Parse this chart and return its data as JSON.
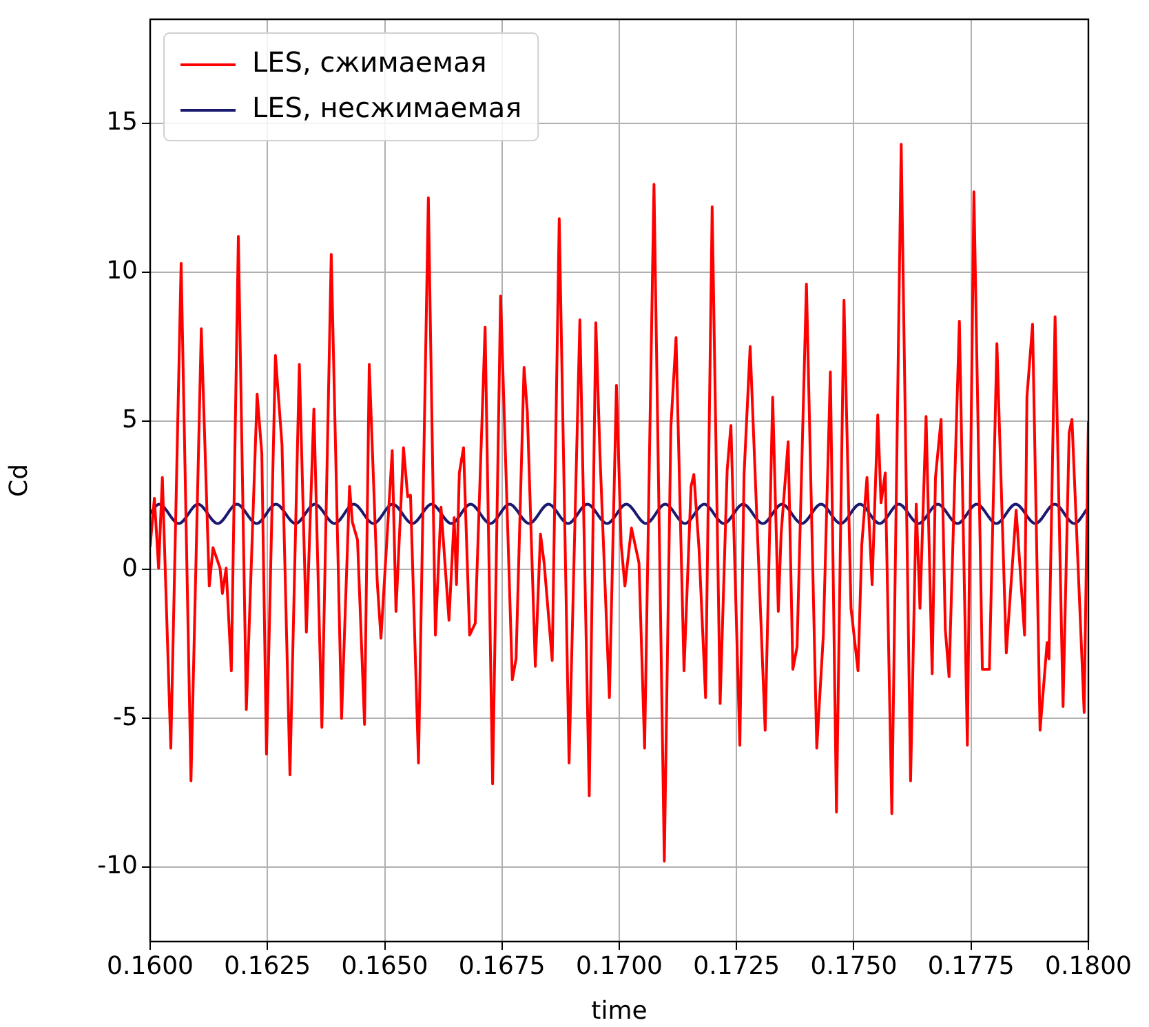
{
  "chart_data": {
    "type": "line",
    "xlabel": "time",
    "ylabel": "Cd",
    "xlim": [
      0.16,
      0.18
    ],
    "ylim": [
      -12.5,
      18.5
    ],
    "xticks": [
      {
        "value": 0.16,
        "label": "0.1600"
      },
      {
        "value": 0.1625,
        "label": "0.1625"
      },
      {
        "value": 0.165,
        "label": "0.1650"
      },
      {
        "value": 0.1675,
        "label": "0.1675"
      },
      {
        "value": 0.17,
        "label": "0.1700"
      },
      {
        "value": 0.1725,
        "label": "0.1725"
      },
      {
        "value": 0.175,
        "label": "0.1750"
      },
      {
        "value": 0.1775,
        "label": "0.1775"
      },
      {
        "value": 0.18,
        "label": "0.1800"
      }
    ],
    "yticks": [
      -10,
      -5,
      0,
      5,
      10,
      15
    ],
    "grid": true,
    "legend": "top left",
    "marker": "none",
    "line_style": "solid",
    "series": [
      {
        "name": "LES, сжимаемая",
        "color": "#ff0000",
        "x": [
          0.16,
          0.16009,
          0.16018,
          0.16026,
          0.16044,
          0.16066,
          0.16087,
          0.16109,
          0.16126,
          0.16134,
          0.16149,
          0.16154,
          0.16162,
          0.16173,
          0.16188,
          0.16205,
          0.16228,
          0.16238,
          0.16248,
          0.16267,
          0.16281,
          0.16298,
          0.16318,
          0.16333,
          0.16349,
          0.16366,
          0.16386,
          0.16408,
          0.16425,
          0.16431,
          0.16442,
          0.16457,
          0.16467,
          0.16484,
          0.16492,
          0.16516,
          0.16524,
          0.1654,
          0.16549,
          0.16555,
          0.16572,
          0.16593,
          0.16608,
          0.1662,
          0.16637,
          0.16648,
          0.16653,
          0.16659,
          0.16668,
          0.16681,
          0.16693,
          0.16714,
          0.1673,
          0.16747,
          0.16772,
          0.1678,
          0.16797,
          0.16804,
          0.16821,
          0.16832,
          0.1684,
          0.16857,
          0.16872,
          0.16893,
          0.16916,
          0.16936,
          0.1695,
          0.16959,
          0.16979,
          0.16994,
          0.17004,
          0.17012,
          0.17026,
          0.17042,
          0.17054,
          0.17074,
          0.17096,
          0.1711,
          0.17121,
          0.17138,
          0.17153,
          0.17159,
          0.1717,
          0.17184,
          0.17198,
          0.17215,
          0.1723,
          0.17238,
          0.17257,
          0.17266,
          0.17279,
          0.17311,
          0.17327,
          0.17339,
          0.17345,
          0.1736,
          0.1737,
          0.17379,
          0.17399,
          0.17421,
          0.17435,
          0.1745,
          0.17463,
          0.17479,
          0.17494,
          0.17509,
          0.17517,
          0.17528,
          0.17539,
          0.17551,
          0.17558,
          0.17567,
          0.17581,
          0.17601,
          0.17621,
          0.17633,
          0.17641,
          0.17654,
          0.17667,
          0.17674,
          0.17686,
          0.17695,
          0.17703,
          0.17725,
          0.17742,
          0.17756,
          0.17774,
          0.17789,
          0.17805,
          0.17825,
          0.17846,
          0.17864,
          0.17869,
          0.17881,
          0.17897,
          0.17912,
          0.17916,
          0.17929,
          0.17946,
          0.17959,
          0.17965,
          0.17991,
          0.18
        ],
        "values": [
          0.8,
          2.4,
          0.05,
          3.1,
          -6.0,
          10.3,
          -7.1,
          8.1,
          -0.55,
          0.74,
          0.05,
          -0.8,
          0.05,
          -3.4,
          11.2,
          -4.7,
          5.9,
          3.9,
          -6.2,
          7.2,
          4.2,
          -6.9,
          6.9,
          -2.1,
          5.4,
          -5.3,
          10.6,
          -5.0,
          2.8,
          1.6,
          1.0,
          -5.2,
          6.9,
          -0.4,
          -2.3,
          4.0,
          -1.4,
          4.1,
          2.45,
          2.5,
          -6.5,
          12.5,
          -2.2,
          2.1,
          -1.7,
          1.75,
          -0.5,
          3.25,
          4.1,
          -2.2,
          -1.8,
          8.15,
          -7.2,
          9.2,
          -3.7,
          -3.0,
          6.8,
          5.3,
          -3.25,
          1.2,
          0.2,
          -3.05,
          11.8,
          -6.5,
          8.4,
          -7.6,
          8.3,
          3.8,
          -4.3,
          6.2,
          0.85,
          -0.55,
          1.4,
          0.23,
          -6.0,
          12.95,
          -9.8,
          4.8,
          7.8,
          -3.4,
          2.8,
          3.2,
          0.7,
          -4.3,
          12.2,
          -4.5,
          3.35,
          4.85,
          -5.9,
          3.2,
          7.5,
          -5.4,
          5.8,
          -1.4,
          1.2,
          4.3,
          -3.35,
          -2.6,
          9.6,
          -6.0,
          -2.2,
          6.65,
          -8.15,
          9.05,
          -1.3,
          -3.4,
          0.85,
          3.1,
          -0.5,
          5.2,
          2.25,
          3.25,
          -8.2,
          14.3,
          -7.1,
          2.2,
          -1.3,
          5.15,
          -3.5,
          3.1,
          5.05,
          -2.0,
          -3.6,
          8.35,
          -5.9,
          12.7,
          -3.35,
          -3.35,
          7.6,
          -2.8,
          2.0,
          -2.2,
          5.8,
          8.25,
          -5.4,
          -2.45,
          -3.0,
          8.5,
          -4.6,
          4.6,
          5.05,
          -4.8,
          4.95
        ]
      },
      {
        "name": "LES, несжимаемая",
        "color": "#191970",
        "x": [
          0.16,
          0.16019,
          0.16061,
          0.16102,
          0.16144,
          0.16185,
          0.16227,
          0.16268,
          0.1631,
          0.16351,
          0.16393,
          0.16434,
          0.16476,
          0.16517,
          0.16559,
          0.166,
          0.16642,
          0.16683,
          0.16725,
          0.16766,
          0.16808,
          0.16849,
          0.16891,
          0.16932,
          0.16974,
          0.17015,
          0.17057,
          0.17098,
          0.1714,
          0.17181,
          0.17223,
          0.17264,
          0.17306,
          0.17347,
          0.17389,
          0.1743,
          0.17472,
          0.17513,
          0.17555,
          0.17596,
          0.17638,
          0.17679,
          0.17721,
          0.17762,
          0.17804,
          0.17845,
          0.17887,
          0.17928,
          0.1797,
          0.18
        ],
        "values": [
          1.9,
          2.2,
          1.55,
          2.2,
          1.55,
          2.2,
          1.55,
          2.2,
          1.55,
          2.2,
          1.55,
          2.2,
          1.55,
          2.2,
          1.55,
          2.2,
          1.55,
          2.2,
          1.55,
          2.2,
          1.55,
          2.2,
          1.55,
          2.2,
          1.55,
          2.2,
          1.55,
          2.2,
          1.55,
          2.2,
          1.55,
          2.2,
          1.55,
          2.2,
          1.55,
          2.2,
          1.55,
          2.2,
          1.55,
          2.2,
          1.55,
          2.2,
          1.55,
          2.2,
          1.55,
          2.2,
          1.55,
          2.2,
          1.55,
          2.1
        ]
      }
    ]
  }
}
